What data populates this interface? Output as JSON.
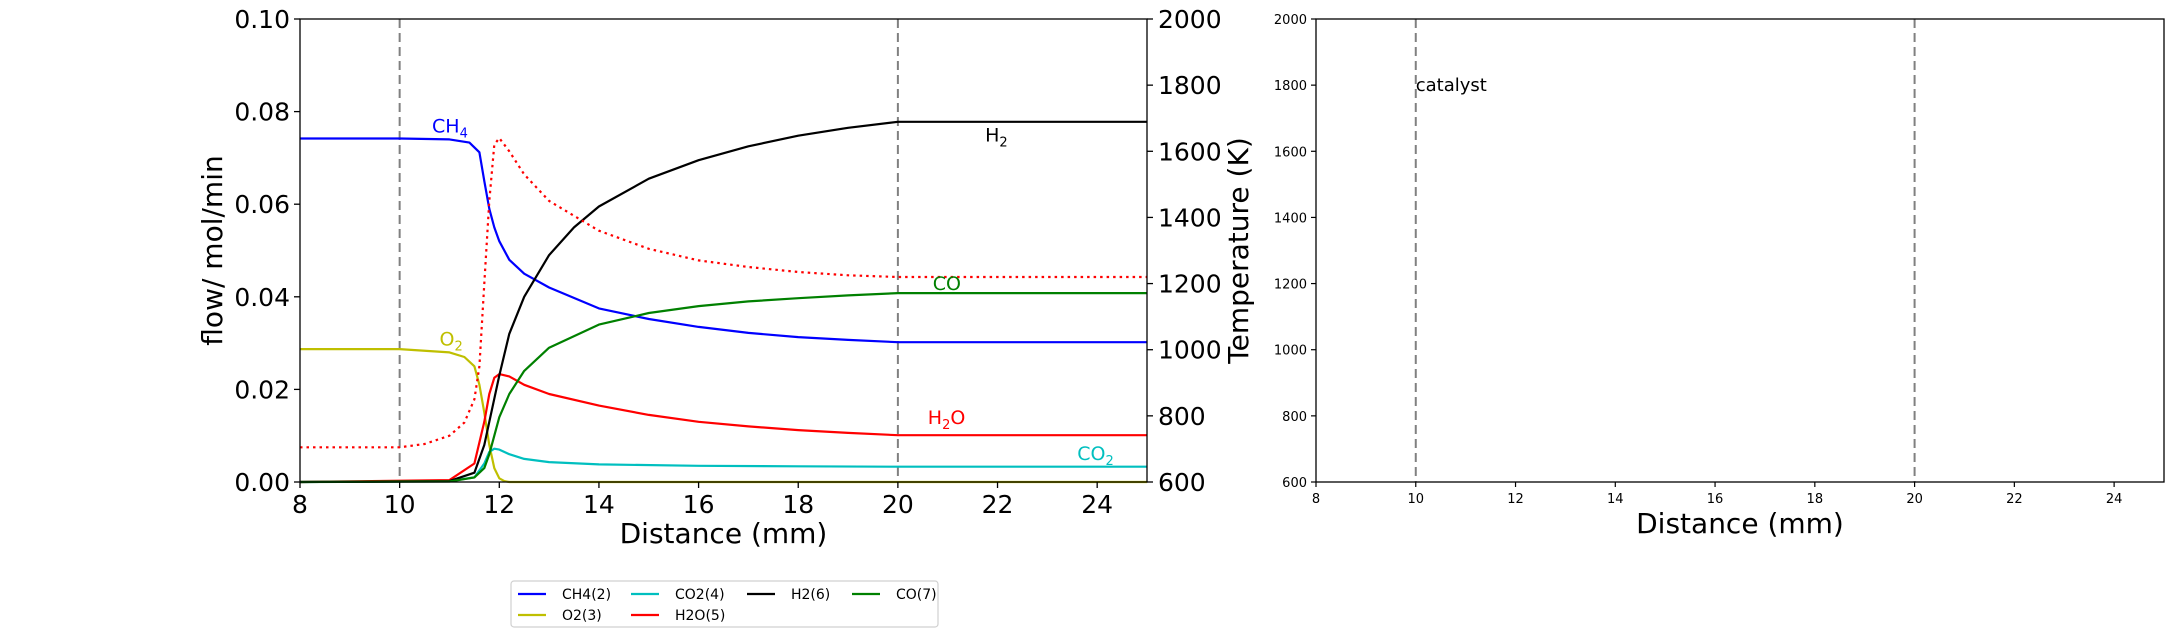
{
  "chart_data": [
    {
      "type": "line",
      "xlabel": "Distance (mm)",
      "ylabel": "flow/ mol/min",
      "y2label": "Temperature (K)",
      "xlim": [
        8,
        25
      ],
      "ylim": [
        0,
        0.1
      ],
      "y2lim": [
        600,
        2000
      ],
      "xticks": [
        "8",
        "10",
        "12",
        "14",
        "16",
        "18",
        "20",
        "22",
        "24"
      ],
      "yticks": [
        "0.00",
        "0.02",
        "0.04",
        "0.06",
        "0.08",
        "0.10"
      ],
      "y2ticks": [
        "600",
        "800",
        "1000",
        "1200",
        "1400",
        "1600",
        "1800",
        "2000"
      ],
      "grid": false,
      "vlines": [
        10,
        20
      ],
      "series": [
        {
          "name": "CH4(2)",
          "color": "#0000ff",
          "x": [
            8,
            10,
            11,
            11.4,
            11.6,
            11.7,
            11.8,
            11.9,
            12.0,
            12.2,
            12.5,
            13,
            14,
            15,
            16,
            17,
            18,
            19,
            20,
            25
          ],
          "y": [
            0.0742,
            0.0742,
            0.074,
            0.0733,
            0.0712,
            0.065,
            0.059,
            0.055,
            0.052,
            0.048,
            0.045,
            0.042,
            0.0375,
            0.0352,
            0.0335,
            0.0322,
            0.0313,
            0.0307,
            0.0302,
            0.0302
          ]
        },
        {
          "name": "O2(3)",
          "color": "#bfbf00",
          "x": [
            8,
            10,
            11,
            11.3,
            11.5,
            11.6,
            11.7,
            11.8,
            11.9,
            12.0,
            12.1,
            12.2,
            25
          ],
          "y": [
            0.0287,
            0.0287,
            0.028,
            0.027,
            0.025,
            0.021,
            0.015,
            0.008,
            0.003,
            0.0008,
            0.0002,
            0.0,
            0.0
          ]
        },
        {
          "name": "CO2(4)",
          "color": "#00bfbf",
          "x": [
            8,
            11,
            11.5,
            11.7,
            11.8,
            11.9,
            12.0,
            12.2,
            12.5,
            13,
            14,
            16,
            18,
            20,
            25
          ],
          "y": [
            0.0,
            0.0002,
            0.001,
            0.004,
            0.0065,
            0.0072,
            0.007,
            0.006,
            0.005,
            0.0043,
            0.0038,
            0.0035,
            0.0034,
            0.0033,
            0.0033
          ]
        },
        {
          "name": "H2O(5)",
          "color": "#ff0000",
          "x": [
            8,
            11,
            11.5,
            11.7,
            11.8,
            11.9,
            12.0,
            12.2,
            12.5,
            13,
            14,
            15,
            16,
            17,
            18,
            19,
            20,
            25
          ],
          "y": [
            0.0,
            0.0004,
            0.004,
            0.013,
            0.019,
            0.0225,
            0.0233,
            0.0228,
            0.021,
            0.019,
            0.0165,
            0.0145,
            0.013,
            0.012,
            0.0112,
            0.0106,
            0.0101,
            0.0101
          ]
        },
        {
          "name": "H2(6)",
          "color": "#000000",
          "x": [
            8,
            11,
            11.5,
            11.7,
            11.8,
            11.9,
            12.0,
            12.2,
            12.5,
            13,
            13.5,
            14,
            15,
            16,
            17,
            18,
            19,
            20,
            25
          ],
          "y": [
            0.0,
            0.0002,
            0.002,
            0.008,
            0.013,
            0.018,
            0.023,
            0.032,
            0.04,
            0.049,
            0.055,
            0.0595,
            0.0655,
            0.0695,
            0.0725,
            0.0748,
            0.0765,
            0.0778,
            0.0778
          ]
        },
        {
          "name": "CO(7)",
          "color": "#008000",
          "x": [
            8,
            11,
            11.5,
            11.7,
            11.8,
            11.9,
            12.0,
            12.2,
            12.5,
            13,
            14,
            15,
            16,
            17,
            18,
            19,
            20,
            25
          ],
          "y": [
            0.0,
            0.0001,
            0.001,
            0.003,
            0.006,
            0.01,
            0.014,
            0.019,
            0.024,
            0.029,
            0.034,
            0.0365,
            0.038,
            0.039,
            0.0397,
            0.0403,
            0.0408,
            0.0408
          ]
        },
        {
          "name": "",
          "axis": "y2",
          "style": "dotted",
          "color": "#ff0000",
          "x": [
            8,
            10,
            10.5,
            11,
            11.3,
            11.5,
            11.6,
            11.7,
            11.8,
            11.9,
            12.0,
            12.2,
            12.5,
            13,
            14,
            15,
            16,
            17,
            18,
            19,
            20,
            25
          ],
          "y": [
            705,
            705,
            715,
            740,
            780,
            850,
            950,
            1200,
            1450,
            1620,
            1640,
            1600,
            1530,
            1450,
            1360,
            1305,
            1270,
            1250,
            1235,
            1225,
            1220,
            1220
          ]
        }
      ],
      "annotations": [
        {
          "base": "CH",
          "sub": "4",
          "x": 10.65,
          "y": 0.0755,
          "color": "#0000ff"
        },
        {
          "base": "O",
          "sub": "2",
          "x": 10.8,
          "y": 0.0295,
          "color": "#bfbf00"
        },
        {
          "base": "H",
          "sub": "2",
          "x": 21.75,
          "y": 0.0735,
          "color": "#000000"
        },
        {
          "base": "CO",
          "sub": "",
          "x": 20.7,
          "y": 0.0415,
          "color": "#008000"
        },
        {
          "base": "H",
          "sub": "2",
          "suffix": "O",
          "x": 20.6,
          "y": 0.0125,
          "color": "#ff0000"
        },
        {
          "base": "CO",
          "sub": "2",
          "x": 23.6,
          "y": 0.0047,
          "color": "#00bfbf"
        }
      ],
      "legend": {
        "placement": "bottom-center",
        "columns": 4,
        "entries": [
          "CH4(2)",
          "CO2(4)",
          "H2(6)",
          "CO(7)",
          "O2(3)",
          "H2O(5)"
        ]
      }
    },
    {
      "type": "line",
      "xlabel": "Distance (mm)",
      "ylabel": "",
      "xlim": [
        8,
        25
      ],
      "ylim": [
        600,
        2000
      ],
      "xticks": [
        "8",
        "10",
        "12",
        "14",
        "16",
        "18",
        "20",
        "22",
        "24"
      ],
      "yticks": [
        "600",
        "800",
        "1000",
        "1200",
        "1400",
        "1600",
        "1800",
        "2000"
      ],
      "vlines": [
        10,
        20
      ],
      "annotations": [
        {
          "text": "catalyst",
          "x": 10,
          "y": 1800
        }
      ],
      "series": []
    }
  ]
}
